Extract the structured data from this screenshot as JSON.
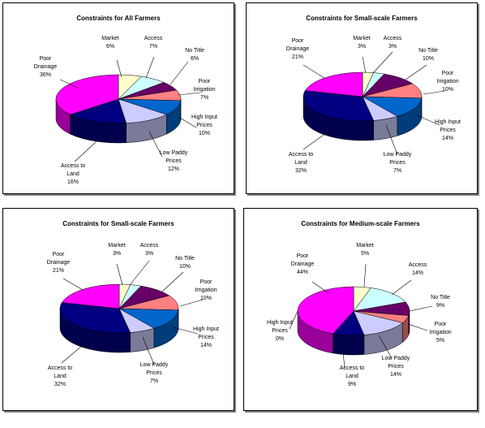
{
  "chart_data": [
    {
      "type": "pie",
      "title": "Constraints for All Farmers",
      "slices": [
        {
          "name": "Market",
          "value": 6,
          "label": "6%",
          "color": "#FFFFCC"
        },
        {
          "name": "Access",
          "value": 7,
          "label": "7%",
          "color": "#CCFFFF"
        },
        {
          "name": "No Title",
          "value": 6,
          "label": "6%",
          "color": "#660066"
        },
        {
          "name": "Poor Irrigation",
          "value": 7,
          "label": "7%",
          "color": "#FF8080"
        },
        {
          "name": "High Input Prices",
          "value": 10,
          "label": "10%",
          "color": "#0066CC"
        },
        {
          "name": "Low Paddy Prices",
          "value": 12,
          "label": "12%",
          "color": "#CCCCFF"
        },
        {
          "name": "Access to Land",
          "value": 16,
          "label": "16%",
          "color": "#000080"
        },
        {
          "name": "Poor Drainage",
          "value": 36,
          "label": "36%",
          "color": "#FF00FF"
        }
      ]
    },
    {
      "type": "pie",
      "title": "Constraints for Small-scale Farmers",
      "slices": [
        {
          "name": "Market",
          "value": 3,
          "label": "3%",
          "color": "#FFFFCC"
        },
        {
          "name": "Access",
          "value": 3,
          "label": "3%",
          "color": "#CCFFFF"
        },
        {
          "name": "No Title",
          "value": 10,
          "label": "10%",
          "color": "#660066"
        },
        {
          "name": "Poor Irrigation",
          "value": 10,
          "label": "10%",
          "color": "#FF8080"
        },
        {
          "name": "High Input Prices",
          "value": 14,
          "label": "14%",
          "color": "#0066CC"
        },
        {
          "name": "Low Paddy Prices",
          "value": 7,
          "label": "7%",
          "color": "#CCCCFF"
        },
        {
          "name": "Access to Land",
          "value": 32,
          "label": "32%",
          "color": "#000080"
        },
        {
          "name": "Poor Drainage",
          "value": 21,
          "label": "21%",
          "color": "#FF00FF"
        }
      ]
    },
    {
      "type": "pie",
      "title": "Constraints for Small-scale Farmers",
      "slices": [
        {
          "name": "Market",
          "value": 3,
          "label": "3%",
          "color": "#FFFFCC"
        },
        {
          "name": "Access",
          "value": 3,
          "label": "3%",
          "color": "#CCFFFF"
        },
        {
          "name": "No Title",
          "value": 10,
          "label": "10%",
          "color": "#660066"
        },
        {
          "name": "Poor Irrigation",
          "value": 10,
          "label": "10%",
          "color": "#FF8080"
        },
        {
          "name": "High Input Prices",
          "value": 14,
          "label": "14%",
          "color": "#0066CC"
        },
        {
          "name": "Low Paddy Prices",
          "value": 7,
          "label": "7%",
          "color": "#CCCCFF"
        },
        {
          "name": "Access to Land",
          "value": 32,
          "label": "32%",
          "color": "#000080"
        },
        {
          "name": "Poor Drainage",
          "value": 21,
          "label": "21%",
          "color": "#FF00FF"
        }
      ]
    },
    {
      "type": "pie",
      "title": "Constraints for Medium-scale Farmers",
      "slices": [
        {
          "name": "Market",
          "value": 5,
          "label": "5%",
          "color": "#FFFFCC"
        },
        {
          "name": "Access",
          "value": 14,
          "label": "14%",
          "color": "#CCFFFF"
        },
        {
          "name": "No Title",
          "value": 9,
          "label": "9%",
          "color": "#660066"
        },
        {
          "name": "Poor Irrigation",
          "value": 5,
          "label": "5%",
          "color": "#FF8080"
        },
        {
          "name": "High Input Prices",
          "value": 0,
          "label": "0%",
          "color": "#0066CC"
        },
        {
          "name": "Low Paddy Prices",
          "value": 14,
          "label": "14%",
          "color": "#CCCCFF"
        },
        {
          "name": "Access to Land",
          "value": 9,
          "label": "9%",
          "color": "#000080"
        },
        {
          "name": "Poor Drainage",
          "value": 44,
          "label": "44%",
          "color": "#FF00FF"
        }
      ]
    }
  ]
}
